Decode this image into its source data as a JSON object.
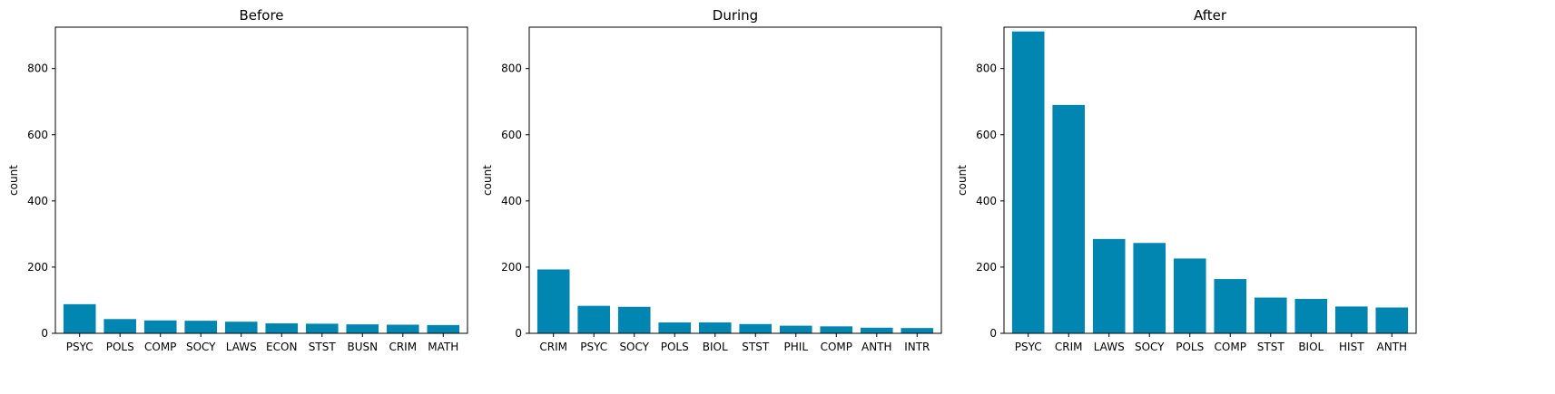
{
  "chart_data": [
    {
      "type": "bar",
      "title": "Before",
      "xlabel": "",
      "ylabel": "count",
      "ylim": [
        0,
        925
      ],
      "yticks": [
        0,
        200,
        400,
        600,
        800
      ],
      "categories": [
        "PSYC",
        "POLS",
        "COMP",
        "SOCY",
        "LAWS",
        "ECON",
        "STST",
        "BUSN",
        "CRIM",
        "MATH"
      ],
      "values": [
        88,
        43,
        39,
        38,
        35,
        30,
        29,
        27,
        26,
        25
      ],
      "bar_color": "#0086b0",
      "grid": false
    },
    {
      "type": "bar",
      "title": "During",
      "xlabel": "",
      "ylabel": "count",
      "ylim": [
        0,
        925
      ],
      "yticks": [
        0,
        200,
        400,
        600,
        800
      ],
      "categories": [
        "CRIM",
        "PSYC",
        "SOCY",
        "POLS",
        "BIOL",
        "STST",
        "PHIL",
        "COMP",
        "ANTH",
        "INTR"
      ],
      "values": [
        193,
        83,
        80,
        33,
        33,
        28,
        23,
        21,
        17,
        16
      ],
      "bar_color": "#0086b0",
      "grid": false
    },
    {
      "type": "bar",
      "title": "After",
      "xlabel": "",
      "ylabel": "count",
      "ylim": [
        0,
        925
      ],
      "yticks": [
        0,
        200,
        400,
        600,
        800
      ],
      "categories": [
        "PSYC",
        "CRIM",
        "LAWS",
        "SOCY",
        "POLS",
        "COMP",
        "STST",
        "BIOL",
        "HIST",
        "ANTH"
      ],
      "values": [
        912,
        690,
        285,
        273,
        226,
        164,
        108,
        104,
        81,
        78
      ],
      "bar_color": "#0086b0",
      "grid": false
    }
  ]
}
